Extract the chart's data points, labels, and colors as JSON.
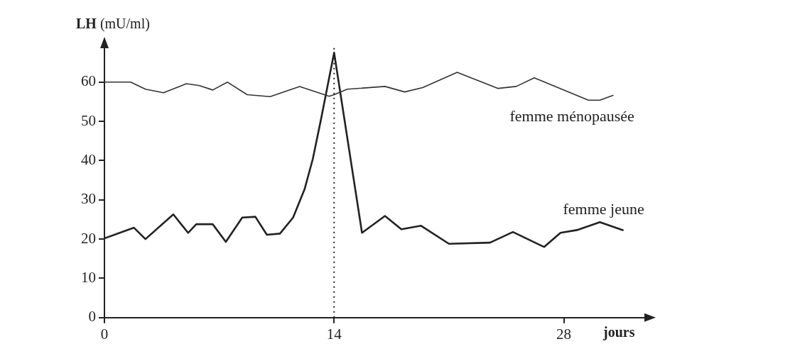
{
  "chart_data": {
    "type": "line",
    "ylabel": "LH (mU/ml)",
    "xlabel": "jours",
    "xlim": [
      0,
      33
    ],
    "xticks": [
      0,
      14,
      28
    ],
    "ylim": [
      0,
      69
    ],
    "yticks": [
      0,
      10,
      20,
      30,
      40,
      50,
      60
    ],
    "grid": false,
    "legend": false,
    "marker": "none",
    "line_style": "solid",
    "ref_lines": [
      {
        "axis": "x",
        "value": 14,
        "line_style": "dotted",
        "color": "#222222"
      }
    ],
    "series": [
      {
        "name": "femme ménopausée",
        "color": "#333333",
        "x": [
          0,
          1.6,
          2.5,
          3.6,
          5.0,
          5.8,
          6.6,
          7.5,
          8.7,
          10.1,
          11.9,
          13.7,
          14.0,
          14.8,
          17.1,
          18.3,
          19.4,
          21.5,
          24.0,
          25.1,
          26.2,
          29.5,
          30.2,
          31.0
        ],
        "values": [
          60,
          60,
          58.2,
          57.3,
          59.6,
          59.1,
          58.0,
          60.0,
          56.8,
          56.3,
          58.9,
          56.4,
          56.8,
          58.2,
          58.9,
          57.5,
          58.6,
          62.5,
          58.4,
          58.9,
          61.1,
          55.4,
          55.4,
          56.6
        ]
      },
      {
        "name": "femme jeune",
        "color": "#222222",
        "x": [
          0,
          1.8,
          2.5,
          4.2,
          5.1,
          5.6,
          6.6,
          7.4,
          8.4,
          9.2,
          9.9,
          10.7,
          11.5,
          12.2,
          12.7,
          13.2,
          14.0,
          15.7,
          17.1,
          18.1,
          19.3,
          21.0,
          23.5,
          24.9,
          26.8,
          27.8,
          28.8,
          30.2,
          31.6
        ],
        "values": [
          20.2,
          22.9,
          20.0,
          26.3,
          21.6,
          23.8,
          23.8,
          19.3,
          25.5,
          25.7,
          21.1,
          21.4,
          25.5,
          32.7,
          40.4,
          50.5,
          67.5,
          21.6,
          25.9,
          22.5,
          23.4,
          18.8,
          19.1,
          21.8,
          18.0,
          21.6,
          22.3,
          24.3,
          22.3
        ]
      }
    ]
  }
}
